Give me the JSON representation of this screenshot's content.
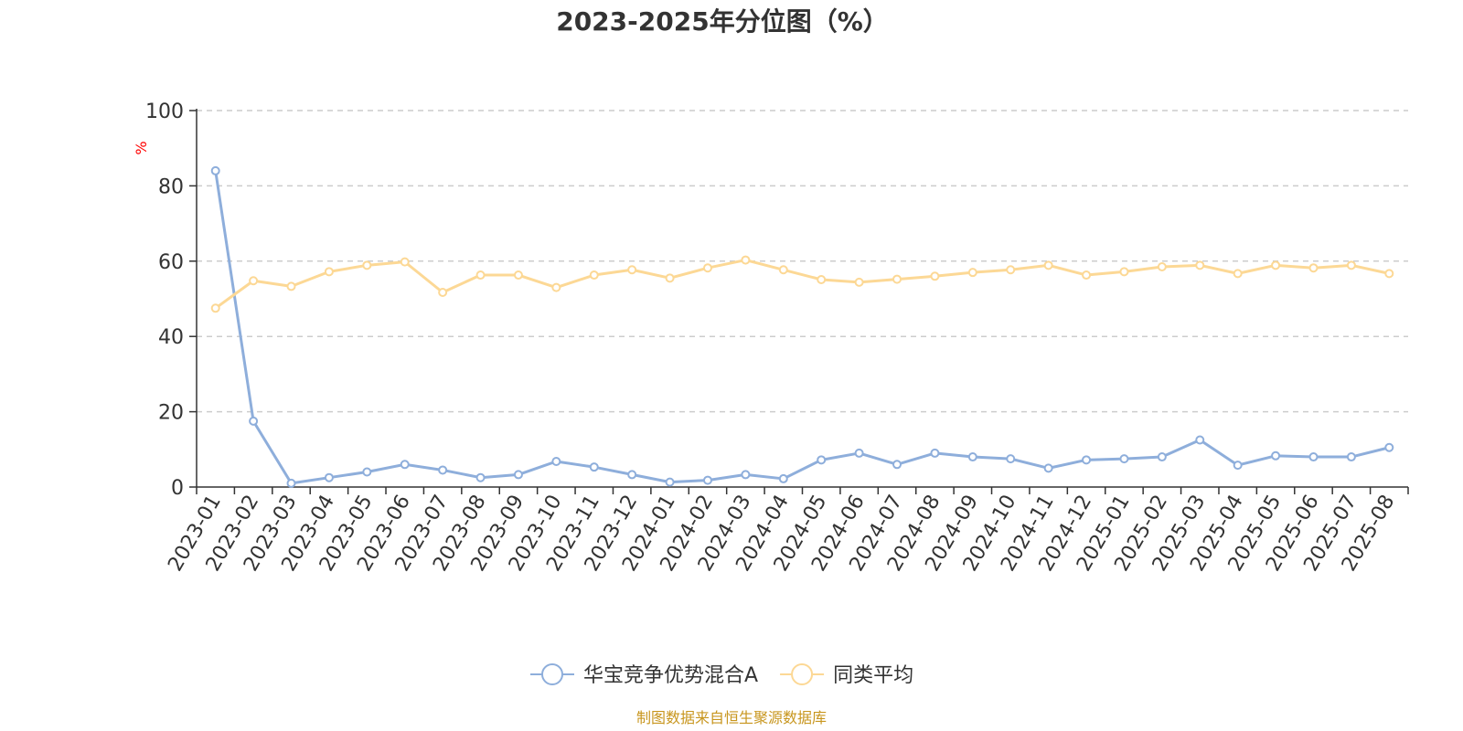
{
  "chart_data": {
    "type": "line",
    "title": "2023-2025年分位图（%）",
    "ylabel": "%",
    "ylim": [
      0,
      100
    ],
    "yticks": [
      "0",
      "20",
      "40",
      "60",
      "80",
      "100"
    ],
    "grid": true,
    "legend_position": "bottom",
    "categories": [
      "2023-01",
      "2023-02",
      "2023-03",
      "2023-04",
      "2023-05",
      "2023-06",
      "2023-07",
      "2023-08",
      "2023-09",
      "2023-10",
      "2023-11",
      "2023-12",
      "2024-01",
      "2024-02",
      "2024-03",
      "2024-04",
      "2024-05",
      "2024-06",
      "2024-07",
      "2024-08",
      "2024-09",
      "2024-10",
      "2024-11",
      "2024-12",
      "2025-01",
      "2025-02",
      "2025-03",
      "2025-04",
      "2025-05",
      "2025-06",
      "2025-07",
      "2025-08"
    ],
    "series": [
      {
        "name": "华宝竞争优势混合A",
        "color": "#8eaedb",
        "values": [
          84,
          17.5,
          1,
          2.5,
          4,
          6,
          4.5,
          2.5,
          3.3,
          6.8,
          5.3,
          3.3,
          1.3,
          1.8,
          3.3,
          2.2,
          7.2,
          9,
          6,
          9,
          8,
          7.5,
          5,
          7.2,
          7.5,
          8,
          12.5,
          5.8,
          8.3,
          8,
          8,
          10.5
        ]
      },
      {
        "name": "同类平均",
        "color": "#fcd895",
        "values": [
          47.5,
          54.8,
          53.3,
          57.2,
          58.9,
          59.8,
          51.7,
          56.3,
          56.3,
          53,
          56.3,
          57.7,
          55.5,
          58.2,
          60.3,
          57.7,
          55.1,
          54.4,
          55.2,
          56,
          57,
          57.7,
          58.9,
          56.3,
          57.2,
          58.5,
          58.9,
          56.7,
          58.9,
          58.2,
          58.9,
          56.7
        ]
      }
    ]
  },
  "source_note": "制图数据来自恒生聚源数据库",
  "colors": {
    "axis": "#333333",
    "grid": "#cccccc",
    "unit": "#ff0000",
    "source": "#c8961e"
  }
}
